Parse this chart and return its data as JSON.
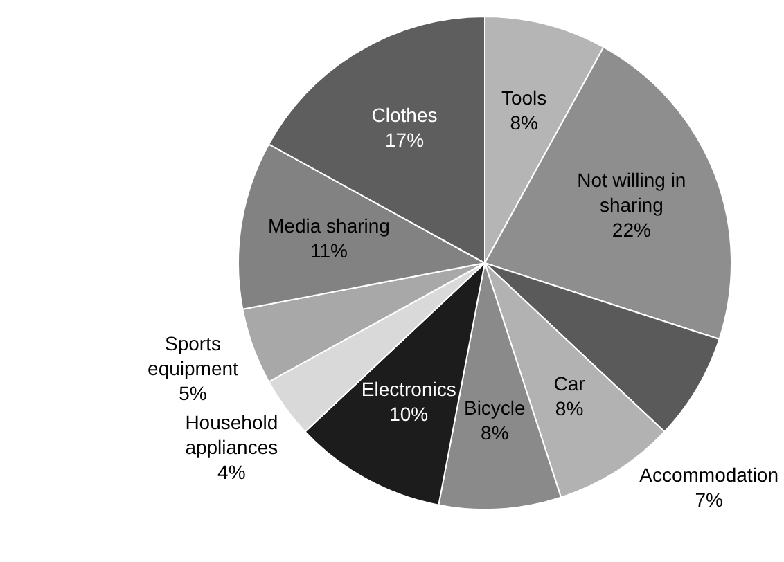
{
  "chart_data": {
    "type": "pie",
    "categories": [
      "Tools",
      "Not willing in sharing",
      "Accommodation",
      "Car",
      "Bicycle",
      "Electronics",
      "Household appliances",
      "Sports equipment",
      "Media sharing",
      "Clothes"
    ],
    "values": [
      8,
      22,
      7,
      8,
      8,
      10,
      4,
      5,
      11,
      17
    ],
    "value_labels": [
      "8%",
      "22%",
      "7%",
      "8%",
      "8%",
      "10%",
      "4%",
      "5%",
      "11%",
      "17%"
    ],
    "colors": [
      "#b5b5b5",
      "#8e8e8e",
      "#5a5a5a",
      "#b2b2b2",
      "#8a8a8a",
      "#1c1c1c",
      "#d9d9d9",
      "#a8a8a8",
      "#828282",
      "#5e5e5e"
    ],
    "legend": false
  }
}
